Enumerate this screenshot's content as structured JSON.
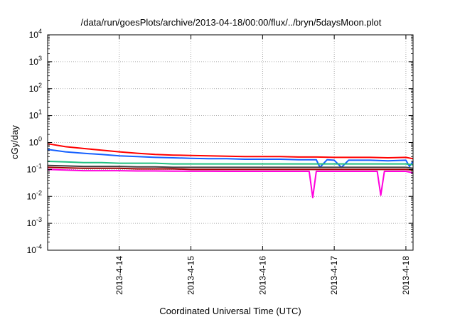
{
  "chart_data": {
    "type": "line",
    "title": "/data/run/goesPlots/archive/2013-04-18/00:00/flux/../bryn/5daysMoon.plot",
    "xlabel": "Coordinated Universal Time (UTC)",
    "ylabel": "cGy/day",
    "yscale": "log",
    "ylim": [
      0.0001,
      10000
    ],
    "xlim": [
      0,
      5.1
    ],
    "x_unit": "days since 2013-4-13 00:00 UTC",
    "grid": true,
    "y_ticks": [
      {
        "base": "10",
        "exp": "-4",
        "value": 0.0001
      },
      {
        "base": "10",
        "exp": "-3",
        "value": 0.001
      },
      {
        "base": "10",
        "exp": "-2",
        "value": 0.01
      },
      {
        "base": "10",
        "exp": "-1",
        "value": 0.1
      },
      {
        "base": "10",
        "exp": "0",
        "value": 1
      },
      {
        "base": "10",
        "exp": "1",
        "value": 10
      },
      {
        "base": "10",
        "exp": "2",
        "value": 100
      },
      {
        "base": "10",
        "exp": "3",
        "value": 1000
      },
      {
        "base": "10",
        "exp": "4",
        "value": 10000
      }
    ],
    "x_ticks": [
      {
        "label": "2013-4-14",
        "value": 1
      },
      {
        "label": "2013-4-15",
        "value": 2
      },
      {
        "label": "2013-4-16",
        "value": 3
      },
      {
        "label": "2013-4-17",
        "value": 4
      },
      {
        "label": "2013-4-18",
        "value": 5
      }
    ],
    "series": [
      {
        "color": "#ff0000",
        "x": [
          0,
          0.25,
          0.5,
          0.75,
          1,
          1.25,
          1.5,
          1.75,
          2,
          2.25,
          2.5,
          2.75,
          3,
          3.25,
          3.5,
          3.75,
          4,
          4.25,
          4.5,
          4.75,
          5,
          5.1
        ],
        "y": [
          0.9,
          0.7,
          0.6,
          0.52,
          0.45,
          0.4,
          0.36,
          0.34,
          0.33,
          0.32,
          0.31,
          0.3,
          0.3,
          0.3,
          0.29,
          0.29,
          0.28,
          0.28,
          0.28,
          0.27,
          0.28,
          0.25
        ]
      },
      {
        "color": "#1560ff",
        "x": [
          0,
          0.25,
          0.5,
          0.75,
          1,
          1.25,
          1.5,
          1.75,
          2,
          2.25,
          2.5,
          2.75,
          3,
          3.25,
          3.5,
          3.75,
          3.8,
          3.9,
          4,
          4.1,
          4.2,
          4.25,
          4.5,
          4.75,
          5,
          5.05,
          5.1
        ],
        "y": [
          0.55,
          0.45,
          0.4,
          0.36,
          0.32,
          0.3,
          0.28,
          0.27,
          0.26,
          0.25,
          0.25,
          0.24,
          0.24,
          0.24,
          0.23,
          0.23,
          0.12,
          0.23,
          0.22,
          0.12,
          0.22,
          0.22,
          0.22,
          0.21,
          0.22,
          0.13,
          0.2
        ]
      },
      {
        "color": "#20c080",
        "x": [
          0,
          0.25,
          0.5,
          0.75,
          1,
          1.25,
          1.5,
          1.75,
          2,
          2.25,
          2.5,
          2.75,
          3,
          3.25,
          3.5,
          3.75,
          4,
          4.25,
          4.5,
          4.75,
          5,
          5.1
        ],
        "y": [
          0.2,
          0.19,
          0.18,
          0.18,
          0.17,
          0.17,
          0.17,
          0.16,
          0.16,
          0.16,
          0.16,
          0.16,
          0.16,
          0.16,
          0.16,
          0.16,
          0.16,
          0.16,
          0.16,
          0.16,
          0.16,
          0.15
        ]
      },
      {
        "color": "#404040",
        "x": [
          0,
          0.25,
          0.5,
          0.75,
          1,
          1.25,
          1.5,
          1.75,
          2,
          2.25,
          2.5,
          2.75,
          3,
          3.25,
          3.5,
          3.75,
          4,
          4.25,
          4.5,
          4.75,
          5,
          5.1
        ],
        "y": [
          0.14,
          0.135,
          0.13,
          0.13,
          0.13,
          0.125,
          0.125,
          0.12,
          0.12,
          0.12,
          0.12,
          0.12,
          0.12,
          0.12,
          0.12,
          0.12,
          0.12,
          0.12,
          0.12,
          0.12,
          0.12,
          0.11
        ]
      },
      {
        "color": "#a00000",
        "x": [
          0,
          0.25,
          0.5,
          0.75,
          1,
          1.25,
          1.5,
          1.75,
          2,
          2.25,
          2.5,
          2.75,
          3,
          3.25,
          3.5,
          3.75,
          4,
          4.25,
          4.5,
          4.75,
          5,
          5.1
        ],
        "y": [
          0.12,
          0.115,
          0.11,
          0.11,
          0.11,
          0.105,
          0.105,
          0.105,
          0.1,
          0.1,
          0.1,
          0.1,
          0.1,
          0.1,
          0.1,
          0.1,
          0.1,
          0.1,
          0.1,
          0.1,
          0.1,
          0.095
        ]
      },
      {
        "color": "#ff00dd",
        "x": [
          0,
          0.25,
          0.5,
          0.75,
          1,
          1.25,
          1.5,
          1.75,
          2,
          2.25,
          2.5,
          2.75,
          3,
          3.25,
          3.5,
          3.65,
          3.7,
          3.75,
          3.85,
          4,
          4.25,
          4.5,
          4.6,
          4.65,
          4.7,
          4.8,
          5,
          5.1
        ],
        "y": [
          0.1,
          0.095,
          0.09,
          0.09,
          0.09,
          0.088,
          0.088,
          0.087,
          0.086,
          0.086,
          0.085,
          0.085,
          0.085,
          0.085,
          0.085,
          0.085,
          0.009,
          0.085,
          0.085,
          0.085,
          0.085,
          0.085,
          0.085,
          0.011,
          0.085,
          0.085,
          0.085,
          0.075
        ]
      }
    ]
  }
}
